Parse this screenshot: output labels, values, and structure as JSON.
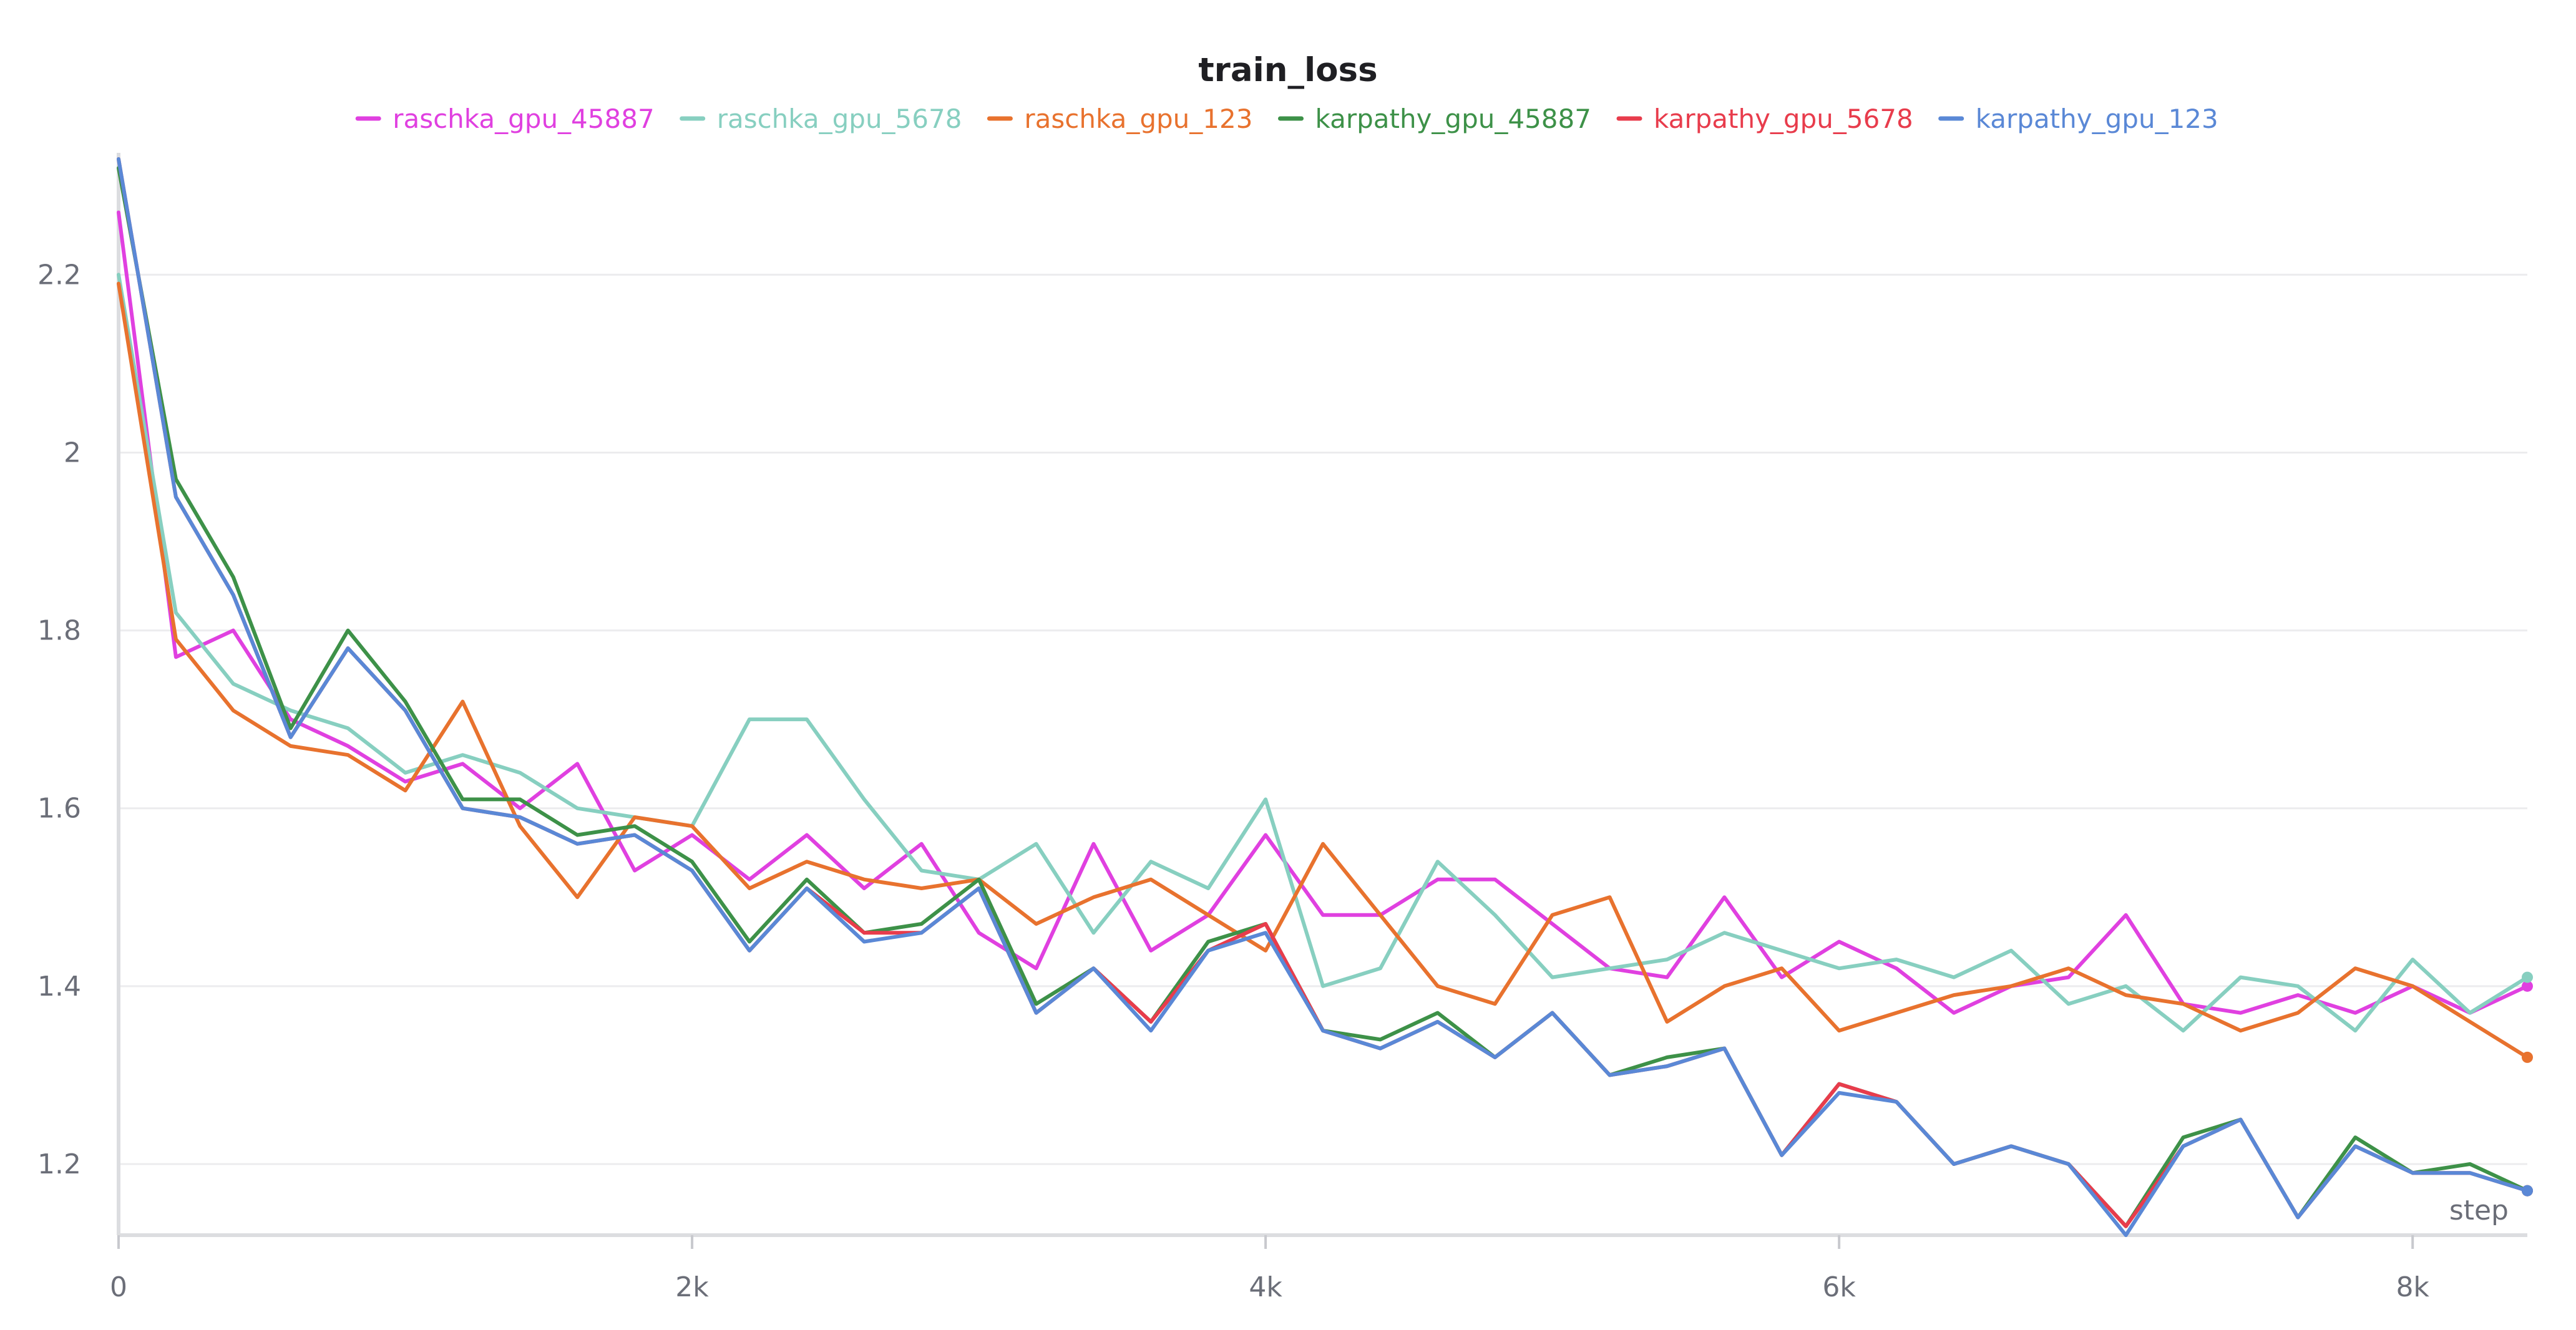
{
  "chart_data": {
    "type": "line",
    "title": "train_loss",
    "xlabel": "step",
    "ylabel": "",
    "xlim": [
      0,
      8400
    ],
    "ylim": [
      1.12,
      2.33
    ],
    "x_ticks": [
      0,
      2000,
      4000,
      6000,
      8000
    ],
    "x_tick_labels": [
      "0",
      "2k",
      "4k",
      "6k",
      "8k"
    ],
    "y_ticks": [
      1.2,
      1.4,
      1.6,
      1.8,
      2.0,
      2.2
    ],
    "y_tick_labels": [
      "1.2",
      "1.4",
      "1.6",
      "1.8",
      "2",
      "2.2"
    ],
    "grid": true,
    "legend_position": "top-center",
    "x": [
      0,
      200,
      400,
      600,
      800,
      1000,
      1200,
      1400,
      1600,
      1800,
      2000,
      2200,
      2400,
      2600,
      2800,
      3000,
      3200,
      3400,
      3600,
      3800,
      4000,
      4200,
      4400,
      4600,
      4800,
      5000,
      5200,
      5400,
      5600,
      5800,
      6000,
      6200,
      6400,
      6600,
      6800,
      7000,
      7200,
      7400,
      7600,
      7800,
      8000,
      8200,
      8400
    ],
    "series": [
      {
        "name": "raschka_gpu_45887",
        "color": "#e040e0",
        "values": [
          2.27,
          1.77,
          1.8,
          1.7,
          1.67,
          1.63,
          1.65,
          1.6,
          1.65,
          1.53,
          1.57,
          1.52,
          1.57,
          1.51,
          1.56,
          1.46,
          1.42,
          1.56,
          1.44,
          1.48,
          1.57,
          1.48,
          1.48,
          1.52,
          1.52,
          1.47,
          1.42,
          1.41,
          1.5,
          1.41,
          1.45,
          1.42,
          1.37,
          1.4,
          1.41,
          1.48,
          1.38,
          1.37,
          1.39,
          1.37,
          1.4,
          1.37,
          1.4
        ]
      },
      {
        "name": "raschka_gpu_5678",
        "color": "#87cfc0",
        "values": [
          2.2,
          1.82,
          1.74,
          1.71,
          1.69,
          1.64,
          1.66,
          1.64,
          1.6,
          1.59,
          1.58,
          1.7,
          1.7,
          1.61,
          1.53,
          1.52,
          1.56,
          1.46,
          1.54,
          1.51,
          1.61,
          1.4,
          1.42,
          1.54,
          1.48,
          1.41,
          1.42,
          1.43,
          1.46,
          1.44,
          1.42,
          1.43,
          1.41,
          1.44,
          1.38,
          1.4,
          1.35,
          1.41,
          1.4,
          1.35,
          1.43,
          1.37,
          1.41
        ]
      },
      {
        "name": "raschka_gpu_123",
        "color": "#e8722e",
        "values": [
          2.19,
          1.79,
          1.71,
          1.67,
          1.66,
          1.62,
          1.72,
          1.58,
          1.5,
          1.59,
          1.58,
          1.51,
          1.54,
          1.52,
          1.51,
          1.52,
          1.47,
          1.5,
          1.52,
          1.48,
          1.44,
          1.56,
          1.48,
          1.4,
          1.38,
          1.48,
          1.5,
          1.36,
          1.4,
          1.42,
          1.35,
          1.37,
          1.39,
          1.4,
          1.42,
          1.39,
          1.38,
          1.35,
          1.37,
          1.42,
          1.4,
          1.36,
          1.32
        ]
      },
      {
        "name": "karpathy_gpu_45887",
        "color": "#3d9148",
        "values": [
          2.32,
          1.97,
          1.86,
          1.69,
          1.8,
          1.72,
          1.61,
          1.61,
          1.57,
          1.58,
          1.54,
          1.45,
          1.52,
          1.46,
          1.47,
          1.52,
          1.38,
          1.42,
          1.36,
          1.45,
          1.47,
          1.35,
          1.34,
          1.37,
          1.32,
          1.37,
          1.3,
          1.32,
          1.33,
          1.21,
          1.29,
          1.27,
          1.2,
          1.22,
          1.2,
          1.13,
          1.23,
          1.25,
          1.14,
          1.23,
          1.19,
          1.2,
          1.17
        ]
      },
      {
        "name": "karpathy_gpu_5678",
        "color": "#e83c4c",
        "values": [
          2.33,
          1.95,
          1.84,
          1.68,
          1.78,
          1.71,
          1.6,
          1.59,
          1.56,
          1.57,
          1.53,
          1.44,
          1.51,
          1.46,
          1.46,
          1.51,
          1.37,
          1.42,
          1.36,
          1.44,
          1.47,
          1.35,
          1.33,
          1.36,
          1.32,
          1.37,
          1.3,
          1.31,
          1.33,
          1.21,
          1.29,
          1.27,
          1.2,
          1.22,
          1.2,
          1.13,
          1.22,
          1.25,
          1.14,
          1.22,
          1.19,
          1.19,
          1.17
        ]
      },
      {
        "name": "karpathy_gpu_123",
        "color": "#5a88d6",
        "values": [
          2.33,
          1.95,
          1.84,
          1.68,
          1.78,
          1.71,
          1.6,
          1.59,
          1.56,
          1.57,
          1.53,
          1.44,
          1.51,
          1.45,
          1.46,
          1.51,
          1.37,
          1.42,
          1.35,
          1.44,
          1.46,
          1.35,
          1.33,
          1.36,
          1.32,
          1.37,
          1.3,
          1.31,
          1.33,
          1.21,
          1.28,
          1.27,
          1.2,
          1.22,
          1.2,
          1.12,
          1.22,
          1.25,
          1.14,
          1.22,
          1.19,
          1.19,
          1.17
        ]
      }
    ]
  }
}
